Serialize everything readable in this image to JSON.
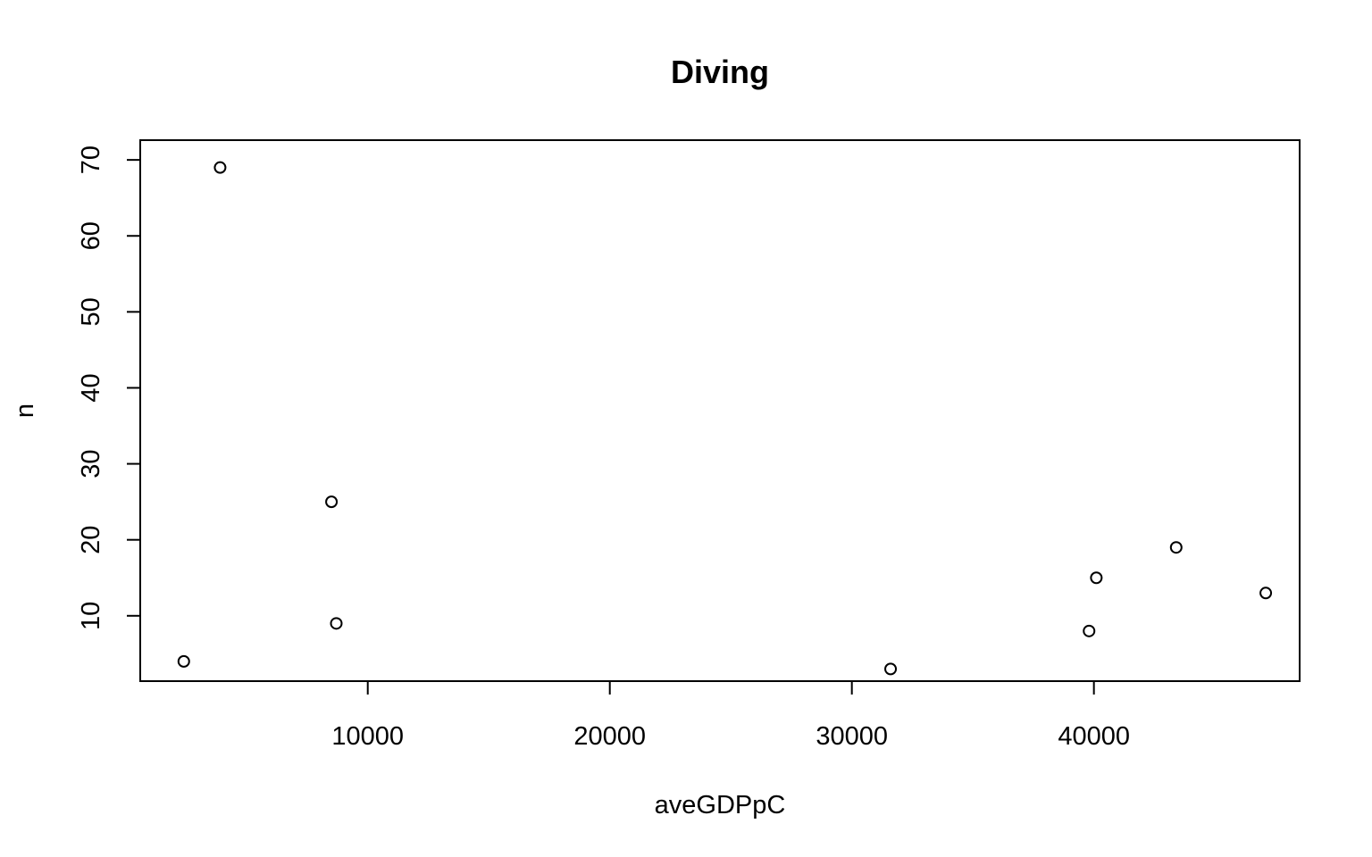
{
  "chart_data": {
    "type": "scatter",
    "title": "Diving",
    "xlabel": "aveGDPpC",
    "ylabel": "n",
    "xlim": [
      600,
      48500
    ],
    "ylim": [
      1.4,
      72.6
    ],
    "x_ticks": [
      10000,
      20000,
      30000,
      40000
    ],
    "y_ticks": [
      10,
      20,
      30,
      40,
      50,
      60,
      70
    ],
    "grid": false,
    "legend": "none",
    "marker": "open-circle",
    "points": [
      {
        "x": 2400,
        "y": 4
      },
      {
        "x": 3900,
        "y": 69
      },
      {
        "x": 8500,
        "y": 25
      },
      {
        "x": 8700,
        "y": 9
      },
      {
        "x": 31600,
        "y": 3
      },
      {
        "x": 39800,
        "y": 8
      },
      {
        "x": 40100,
        "y": 15
      },
      {
        "x": 43400,
        "y": 19
      },
      {
        "x": 47100,
        "y": 13
      }
    ]
  }
}
